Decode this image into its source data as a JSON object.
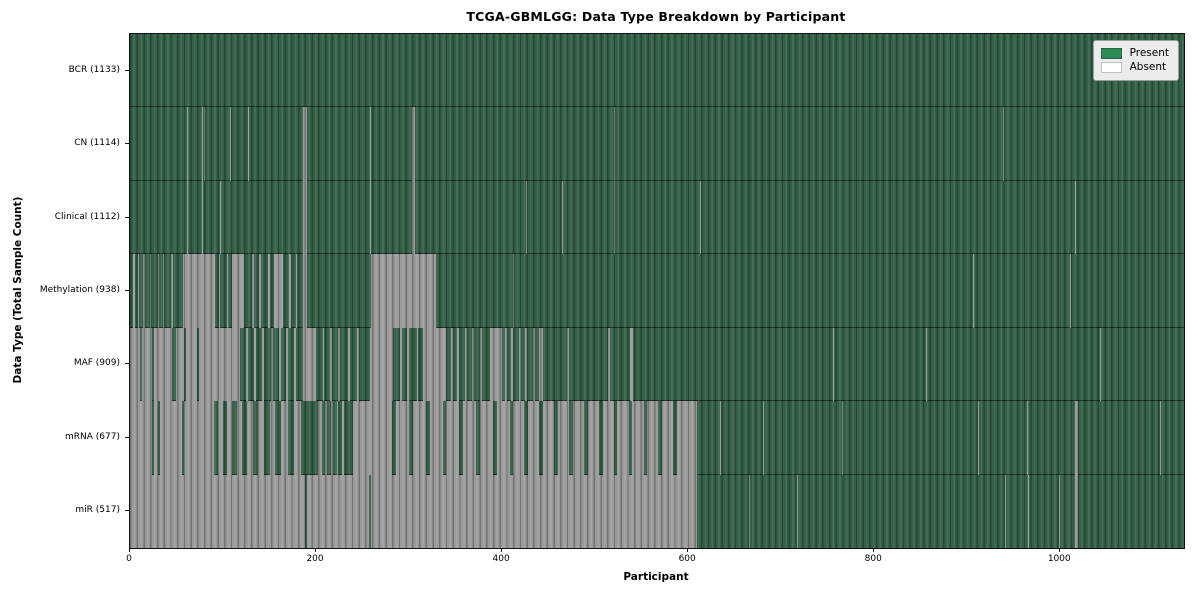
{
  "chart_data": {
    "type": "heatmap",
    "title": "TCGA-GBMLGG: Data Type Breakdown by Participant",
    "xlabel": "Participant",
    "ylabel": "Data Type (Total Sample Count)",
    "x_range": [
      0,
      1133
    ],
    "x_ticks": [
      "0",
      "200",
      "400",
      "600",
      "800",
      "1000"
    ],
    "x_tick_values": [
      0,
      200,
      400,
      600,
      800,
      1000
    ],
    "grid": false,
    "legend_position": "upper right",
    "legend": [
      {
        "label": "Present",
        "color": "#2e8b57"
      },
      {
        "label": "Absent",
        "color": "#ffffff"
      }
    ],
    "colors": {
      "present_fill": "#336046",
      "absent_fill": "#9b9b9b",
      "legend_bg": "#ececec",
      "spine": "#111111"
    },
    "rows": [
      {
        "label": "BCR (1133)",
        "name": "BCR",
        "present_count": 1133,
        "absent_segments": []
      },
      {
        "label": "CN (1114)",
        "name": "CN",
        "present_count": 1114,
        "absent_segments": [
          [
            61,
            62
          ],
          [
            77,
            78
          ],
          [
            80,
            81
          ],
          [
            107,
            108
          ],
          [
            127,
            128
          ],
          [
            186,
            190
          ],
          [
            258,
            259
          ],
          [
            303,
            306
          ],
          [
            520,
            521
          ],
          [
            938,
            939
          ]
        ]
      },
      {
        "label": "Clinical (1112)",
        "name": "Clinical",
        "present_count": 1112,
        "absent_segments": [
          [
            61,
            62
          ],
          [
            77,
            78
          ],
          [
            97,
            98
          ],
          [
            186,
            190
          ],
          [
            258,
            259
          ],
          [
            303,
            306
          ],
          [
            426,
            427
          ],
          [
            464,
            465
          ],
          [
            520,
            521
          ],
          [
            613,
            614
          ],
          [
            1016,
            1017
          ]
        ]
      },
      {
        "label": "Methylation (938)",
        "name": "Methylation",
        "present_count": 938,
        "absent_segments": [
          [
            3,
            5
          ],
          [
            9,
            10
          ],
          [
            14,
            16
          ],
          [
            22,
            23
          ],
          [
            30,
            31
          ],
          [
            36,
            37
          ],
          [
            44,
            46
          ],
          [
            57,
            91
          ],
          [
            96,
            97
          ],
          [
            104,
            105
          ],
          [
            110,
            123
          ],
          [
            131,
            133
          ],
          [
            139,
            141
          ],
          [
            148,
            150
          ],
          [
            155,
            165
          ],
          [
            171,
            173
          ],
          [
            178,
            180
          ],
          [
            186,
            190
          ],
          [
            259,
            329
          ],
          [
            412,
            413
          ],
          [
            906,
            907
          ],
          [
            1010,
            1011
          ]
        ]
      },
      {
        "label": "MAF (909)",
        "name": "MAF",
        "present_count": 909,
        "absent_segments": [
          [
            0,
            11
          ],
          [
            13,
            24
          ],
          [
            26,
            45
          ],
          [
            49,
            58
          ],
          [
            60,
            72
          ],
          [
            74,
            118
          ],
          [
            125,
            127
          ],
          [
            133,
            135
          ],
          [
            142,
            144
          ],
          [
            152,
            154
          ],
          [
            160,
            162
          ],
          [
            168,
            170
          ],
          [
            176,
            178
          ],
          [
            186,
            200
          ],
          [
            207,
            209
          ],
          [
            215,
            217
          ],
          [
            224,
            226
          ],
          [
            234,
            236
          ],
          [
            244,
            246
          ],
          [
            258,
            283
          ],
          [
            290,
            292
          ],
          [
            298,
            300
          ],
          [
            308,
            310
          ],
          [
            315,
            340
          ],
          [
            345,
            347
          ],
          [
            352,
            354
          ],
          [
            360,
            362
          ],
          [
            368,
            370
          ],
          [
            376,
            378
          ],
          [
            387,
            400
          ],
          [
            403,
            405
          ],
          [
            410,
            412
          ],
          [
            418,
            420
          ],
          [
            425,
            427
          ],
          [
            433,
            435
          ],
          [
            440,
            444
          ],
          [
            470,
            472
          ],
          [
            514,
            516
          ],
          [
            538,
            541
          ],
          [
            756,
            757
          ],
          [
            856,
            857
          ],
          [
            1043,
            1044
          ]
        ]
      },
      {
        "label": "mRNA (677)",
        "name": "mRNA",
        "present_count": 677,
        "absent_segments": [
          [
            0,
            24
          ],
          [
            26,
            30
          ],
          [
            32,
            56
          ],
          [
            58,
            90
          ],
          [
            95,
            100
          ],
          [
            104,
            110
          ],
          [
            115,
            120
          ],
          [
            126,
            132
          ],
          [
            138,
            144
          ],
          [
            150,
            156
          ],
          [
            162,
            170
          ],
          [
            176,
            184
          ],
          [
            202,
            206
          ],
          [
            210,
            212
          ],
          [
            216,
            218
          ],
          [
            222,
            224
          ],
          [
            228,
            230
          ],
          [
            240,
            282
          ],
          [
            286,
            300
          ],
          [
            304,
            318
          ],
          [
            322,
            336
          ],
          [
            340,
            354
          ],
          [
            358,
            372
          ],
          [
            376,
            390
          ],
          [
            394,
            408
          ],
          [
            412,
            424
          ],
          [
            428,
            440
          ],
          [
            444,
            456
          ],
          [
            460,
            472
          ],
          [
            476,
            488
          ],
          [
            492,
            504
          ],
          [
            508,
            520
          ],
          [
            524,
            536
          ],
          [
            540,
            552
          ],
          [
            556,
            568
          ],
          [
            572,
            584
          ],
          [
            588,
            610
          ],
          [
            634,
            635
          ],
          [
            680,
            681
          ],
          [
            765,
            766
          ],
          [
            912,
            913
          ],
          [
            964,
            965
          ],
          [
            1016,
            1019
          ],
          [
            1107,
            1108
          ]
        ]
      },
      {
        "label": "miR (517)",
        "name": "miR",
        "present_count": 517,
        "absent_segments": [
          [
            0,
            188
          ],
          [
            190,
            257
          ],
          [
            259,
            610
          ],
          [
            665,
            666
          ],
          [
            717,
            718
          ],
          [
            941,
            942
          ],
          [
            965,
            966
          ],
          [
            999,
            1000
          ],
          [
            1016,
            1019
          ]
        ]
      }
    ]
  }
}
